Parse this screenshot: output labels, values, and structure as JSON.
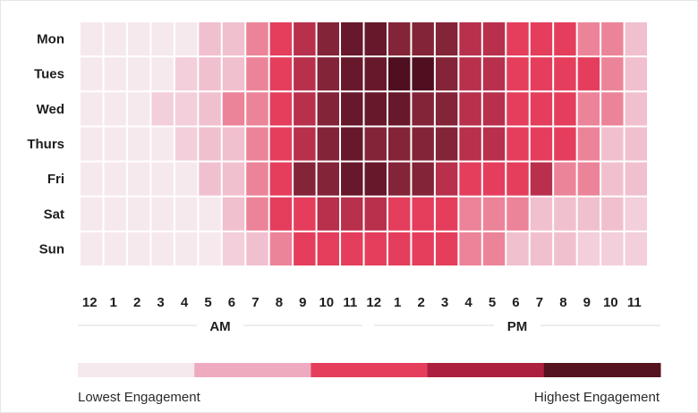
{
  "chart_data": {
    "type": "heatmap",
    "rows": [
      "Mon",
      "Tues",
      "Wed",
      "Thurs",
      "Fri",
      "Sat",
      "Sun"
    ],
    "columns": [
      "12",
      "1",
      "2",
      "3",
      "4",
      "5",
      "6",
      "7",
      "8",
      "9",
      "10",
      "11",
      "12",
      "1",
      "2",
      "3",
      "4",
      "5",
      "6",
      "7",
      "8",
      "9",
      "10",
      "11"
    ],
    "column_groups": [
      {
        "label": "AM",
        "start": 0,
        "end": 11
      },
      {
        "label": "PM",
        "start": 12,
        "end": 23
      }
    ],
    "values": [
      [
        0,
        0,
        0,
        0,
        0,
        2,
        2,
        3,
        4,
        5,
        6,
        7,
        7,
        6,
        6,
        6,
        5,
        5,
        4,
        4,
        4,
        3,
        3,
        2
      ],
      [
        0,
        0,
        0,
        0,
        1,
        2,
        2,
        3,
        4,
        5,
        6,
        7,
        7,
        8,
        8,
        6,
        5,
        5,
        4,
        4,
        4,
        4,
        3,
        2
      ],
      [
        0,
        0,
        0,
        1,
        1,
        2,
        3,
        3,
        4,
        5,
        6,
        7,
        7,
        7,
        6,
        6,
        5,
        5,
        4,
        4,
        4,
        3,
        3,
        2
      ],
      [
        0,
        0,
        0,
        0,
        1,
        2,
        2,
        3,
        4,
        5,
        6,
        7,
        6,
        6,
        6,
        6,
        5,
        5,
        4,
        4,
        4,
        3,
        2,
        2
      ],
      [
        0,
        0,
        0,
        0,
        0,
        2,
        2,
        3,
        4,
        6,
        6,
        7,
        7,
        6,
        6,
        5,
        4,
        4,
        4,
        5,
        3,
        3,
        2,
        2
      ],
      [
        0,
        0,
        0,
        0,
        0,
        0,
        2,
        3,
        4,
        4,
        5,
        5,
        5,
        4,
        4,
        4,
        3,
        3,
        3,
        2,
        2,
        2,
        2,
        1
      ],
      [
        0,
        0,
        0,
        0,
        0,
        0,
        1,
        2,
        3,
        4,
        4,
        4,
        4,
        4,
        4,
        4,
        3,
        3,
        2,
        2,
        2,
        1,
        1,
        1
      ]
    ],
    "value_scale": [
      0,
      8
    ],
    "color_scale": [
      "#f6e9ee",
      "#f3cfdb",
      "#f1c0cf",
      "#ec8499",
      "#e53e5c",
      "#b8304c",
      "#832438",
      "#67182b",
      "#4f0f20"
    ],
    "legend": {
      "bins": [
        "#f6e9ee",
        "#eeabc0",
        "#e53e5c",
        "#ac1f3e",
        "#54131f"
      ],
      "low_label": "Lowest Engagement",
      "high_label": "Highest Engagement"
    }
  }
}
